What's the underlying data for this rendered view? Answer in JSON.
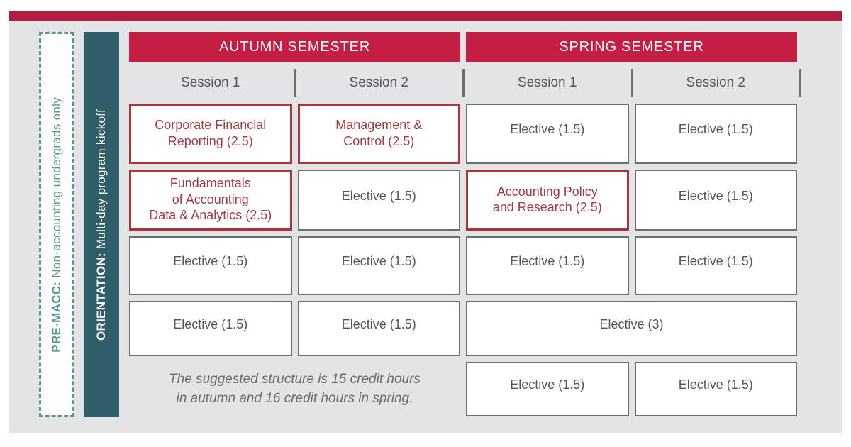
{
  "colors": {
    "top_strip": "#b01d3f",
    "header_crimson": "#c41e45",
    "panel_bg": "#e3e4e5",
    "teal_dark": "#2f5e69",
    "teal_light": "#57978d",
    "core_red_border": "#a8343c",
    "core_red_text": "#a53a42",
    "elective_border": "#6d6e71",
    "elective_text": "#55565a"
  },
  "sidebar": {
    "premacc_prefix": "PRE-MACC:",
    "premacc_text": "Non-accounting undergrads only",
    "orientation_prefix": "ORIENTATION:",
    "orientation_text": "Multi-day program kickoff"
  },
  "headers": {
    "autumn": "AUTUMN SEMESTER",
    "spring": "SPRING SEMESTER"
  },
  "sessions": {
    "autumn_s1": "Session 1",
    "autumn_s2": "Session 2",
    "spring_s1": "Session 1",
    "spring_s2": "Session 2"
  },
  "courses": {
    "r1c1": "Corporate Financial\nReporting (2.5)",
    "r1c2": "Management &\nControl (2.5)",
    "r1c3": "Elective (1.5)",
    "r1c4": "Elective (1.5)",
    "r2c1": "Fundamentals\nof Accounting\nData & Analytics (2.5)",
    "r2c2": "Elective (1.5)",
    "r2c3": "Accounting Policy\nand Research (2.5)",
    "r2c4": "Elective (1.5)",
    "r3c1": "Elective (1.5)",
    "r3c2": "Elective (1.5)",
    "r3c3": "Elective (1.5)",
    "r3c4": "Elective (1.5)",
    "r4c1": "Elective (1.5)",
    "r4c2": "Elective (1.5)",
    "r4c34": "Elective (3)",
    "r5c3": "Elective (1.5)",
    "r5c4": "Elective (1.5)"
  },
  "note": "The suggested structure is 15 credit hours\nin autumn and 16 credit hours in spring."
}
